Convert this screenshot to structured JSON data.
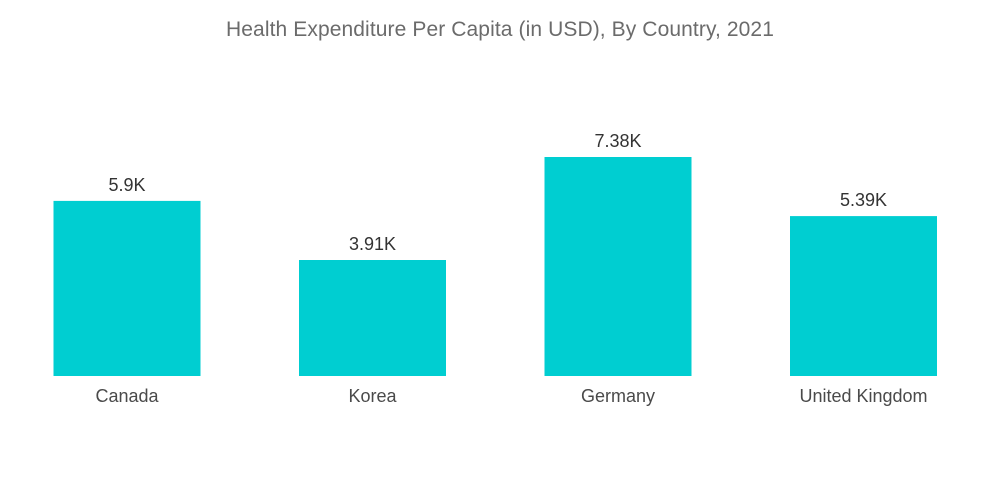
{
  "chart_data": {
    "type": "bar",
    "title": "Health Expenditure Per Capita  (in USD), By Country, 2021",
    "categories": [
      "Canada",
      "Korea",
      "Germany",
      "United Kingdom"
    ],
    "values": [
      5900,
      3910,
      7380,
      5390
    ],
    "data_labels": [
      "5.9K",
      "3.91K",
      "7.38K",
      "5.39K"
    ],
    "xlabel": "",
    "ylabel": "",
    "ylim": [
      0,
      7380
    ],
    "grid": false,
    "legend": "none",
    "bar_color": "#00CED1"
  }
}
